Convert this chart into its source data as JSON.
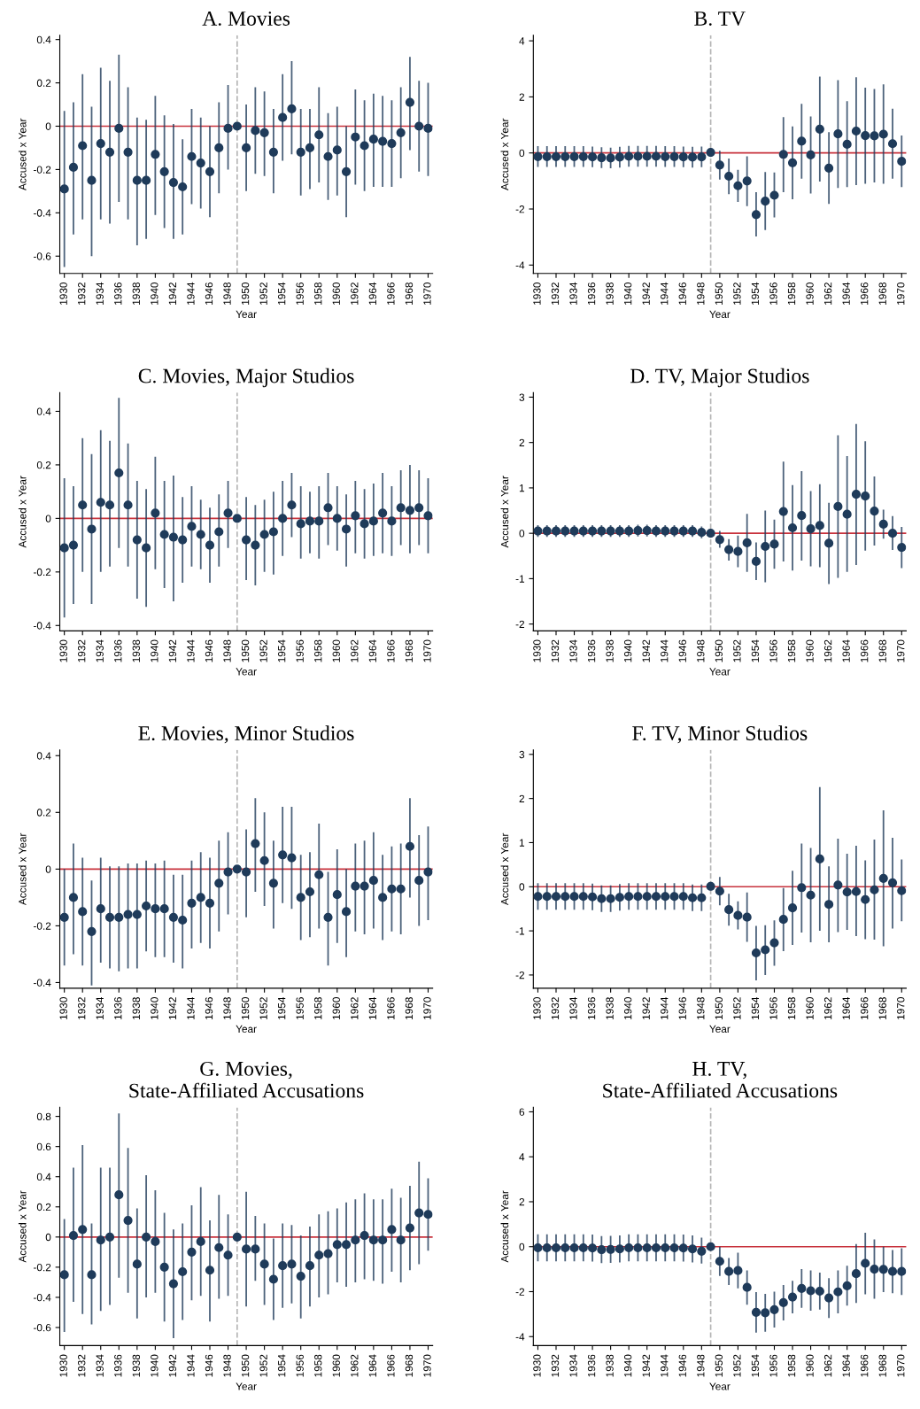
{
  "chart_data": [
    {
      "type": "scatter",
      "title": "A. Movies",
      "xlabel": "Year",
      "ylabel": "Accused x Year",
      "marker": "circle",
      "grid": false,
      "x": [
        1930,
        1931,
        1932,
        1933,
        1934,
        1935,
        1936,
        1937,
        1938,
        1939,
        1940,
        1941,
        1942,
        1943,
        1944,
        1945,
        1946,
        1947,
        1948,
        1949,
        1950,
        1951,
        1952,
        1953,
        1954,
        1955,
        1956,
        1957,
        1958,
        1959,
        1960,
        1961,
        1962,
        1963,
        1964,
        1965,
        1966,
        1967,
        1968,
        1969,
        1970
      ],
      "xlim": [
        1929.5,
        1970.5
      ],
      "xticks": [
        1930,
        1932,
        1934,
        1936,
        1938,
        1940,
        1942,
        1944,
        1946,
        1948,
        1950,
        1952,
        1954,
        1956,
        1958,
        1960,
        1962,
        1964,
        1966,
        1968,
        1970
      ],
      "ylim": [
        -0.68,
        0.42
      ],
      "yticks": [
        -0.6,
        -0.4,
        -0.2,
        0,
        0.2,
        0.4
      ],
      "ref_lines": [
        {
          "axis": "y",
          "value": 0,
          "color": "#c8323c",
          "line_style": "solid"
        },
        {
          "axis": "x",
          "value": 1949,
          "color": "#b4b4b4",
          "line_style": "dashed"
        }
      ],
      "series": [
        {
          "color": "#1f3b5a",
          "values": [
            -0.29,
            -0.19,
            -0.09,
            -0.25,
            -0.08,
            -0.12,
            -0.01,
            -0.12,
            -0.25,
            -0.25,
            -0.13,
            -0.21,
            -0.26,
            -0.28,
            -0.14,
            -0.17,
            -0.21,
            -0.1,
            -0.01,
            0,
            -0.1,
            -0.02,
            -0.03,
            -0.12,
            0.04,
            0.08,
            -0.12,
            -0.1,
            -0.04,
            -0.14,
            -0.11,
            -0.21,
            -0.05,
            -0.09,
            -0.06,
            -0.07,
            -0.08,
            -0.03,
            0.11,
            0.0,
            -0.01
          ],
          "errors": [
            [
              -0.65,
              0.07
            ],
            [
              -0.5,
              0.11
            ],
            [
              -0.43,
              0.24
            ],
            [
              -0.6,
              0.09
            ],
            [
              -0.43,
              0.27
            ],
            [
              -0.45,
              0.21
            ],
            [
              -0.35,
              0.33
            ],
            [
              -0.43,
              0.18
            ],
            [
              -0.55,
              0.04
            ],
            [
              -0.52,
              0.03
            ],
            [
              -0.41,
              0.14
            ],
            [
              -0.47,
              0.05
            ],
            [
              -0.52,
              0.01
            ],
            [
              -0.5,
              -0.06
            ],
            [
              -0.36,
              0.08
            ],
            [
              -0.38,
              0.04
            ],
            [
              -0.42,
              0.0
            ],
            [
              -0.31,
              0.11
            ],
            [
              -0.2,
              0.19
            ],
            null,
            [
              -0.3,
              0.1
            ],
            [
              -0.22,
              0.18
            ],
            [
              -0.23,
              0.16
            ],
            [
              -0.31,
              0.08
            ],
            [
              -0.16,
              0.24
            ],
            [
              -0.13,
              0.3
            ],
            [
              -0.32,
              0.08
            ],
            [
              -0.29,
              0.08
            ],
            [
              -0.26,
              0.18
            ],
            [
              -0.34,
              0.06
            ],
            [
              -0.32,
              0.09
            ],
            [
              -0.42,
              0.0
            ],
            [
              -0.27,
              0.17
            ],
            [
              -0.3,
              0.12
            ],
            [
              -0.28,
              0.15
            ],
            [
              -0.28,
              0.14
            ],
            [
              -0.28,
              0.12
            ],
            [
              -0.24,
              0.18
            ],
            [
              -0.11,
              0.32
            ],
            [
              -0.21,
              0.21
            ],
            [
              -0.23,
              0.2
            ]
          ]
        }
      ]
    },
    {
      "type": "scatter",
      "title": "B. TV",
      "xlabel": "Year",
      "ylabel": "Accused x Year",
      "marker": "circle",
      "grid": false,
      "x": [
        1930,
        1931,
        1932,
        1933,
        1934,
        1935,
        1936,
        1937,
        1938,
        1939,
        1940,
        1941,
        1942,
        1943,
        1944,
        1945,
        1946,
        1947,
        1948,
        1949,
        1950,
        1951,
        1952,
        1953,
        1954,
        1955,
        1956,
        1957,
        1958,
        1959,
        1960,
        1961,
        1962,
        1963,
        1964,
        1965,
        1966,
        1967,
        1968,
        1969,
        1970
      ],
      "xlim": [
        1929.5,
        1970.5
      ],
      "xticks": [
        1930,
        1932,
        1934,
        1936,
        1938,
        1940,
        1942,
        1944,
        1946,
        1948,
        1950,
        1952,
        1954,
        1956,
        1958,
        1960,
        1962,
        1964,
        1966,
        1968,
        1970
      ],
      "ylim": [
        -4.3,
        4.2
      ],
      "yticks": [
        -4,
        -2,
        0,
        2,
        4
      ],
      "ref_lines": [
        {
          "axis": "y",
          "value": 0,
          "color": "#c8323c",
          "line_style": "solid"
        },
        {
          "axis": "x",
          "value": 1949,
          "color": "#b4b4b4",
          "line_style": "dashed"
        }
      ],
      "series": [
        {
          "color": "#1f3b5a",
          "values": [
            -0.13,
            -0.13,
            -0.13,
            -0.13,
            -0.13,
            -0.13,
            -0.14,
            -0.17,
            -0.18,
            -0.15,
            -0.12,
            -0.12,
            -0.12,
            -0.12,
            -0.13,
            -0.13,
            -0.14,
            -0.15,
            -0.14,
            0.02,
            -0.43,
            -0.83,
            -1.17,
            -1.0,
            -2.2,
            -1.72,
            -1.51,
            -0.05,
            -0.35,
            0.42,
            -0.07,
            0.85,
            -0.54,
            0.68,
            0.31,
            0.78,
            0.62,
            0.61,
            0.67,
            0.33,
            -0.3
          ],
          "errors": [
            0.37,
            0.37,
            0.37,
            0.37,
            0.37,
            0.37,
            0.37,
            0.37,
            0.37,
            0.37,
            0.37,
            0.37,
            0.37,
            0.37,
            0.37,
            0.37,
            0.37,
            0.37,
            0.37,
            null,
            [
              -0.95,
              0.08
            ],
            [
              -1.47,
              -0.2
            ],
            [
              -1.75,
              -0.6
            ],
            [
              -1.9,
              -0.12
            ],
            [
              -2.98,
              -1.4
            ],
            [
              -2.75,
              -0.68
            ],
            [
              -2.3,
              -0.7
            ],
            [
              -1.4,
              1.28
            ],
            [
              -1.65,
              0.95
            ],
            [
              -0.92,
              1.75
            ],
            [
              -1.45,
              1.3
            ],
            [
              -1.02,
              2.72
            ],
            [
              -1.82,
              0.74
            ],
            [
              -1.25,
              2.6
            ],
            [
              -1.22,
              1.85
            ],
            [
              -1.15,
              2.7
            ],
            [
              -1.1,
              2.33
            ],
            [
              -1.05,
              2.28
            ],
            [
              -1.1,
              2.45
            ],
            [
              -0.92,
              1.58
            ],
            [
              -1.22,
              0.62
            ]
          ]
        }
      ]
    },
    {
      "type": "scatter",
      "title": "C. Movies, Major Studios",
      "xlabel": "Year",
      "ylabel": "Accused x Year",
      "marker": "circle",
      "grid": false,
      "x": [
        1930,
        1931,
        1932,
        1933,
        1934,
        1935,
        1936,
        1937,
        1938,
        1939,
        1940,
        1941,
        1942,
        1943,
        1944,
        1945,
        1946,
        1947,
        1948,
        1949,
        1950,
        1951,
        1952,
        1953,
        1954,
        1955,
        1956,
        1957,
        1958,
        1959,
        1960,
        1961,
        1962,
        1963,
        1964,
        1965,
        1966,
        1967,
        1968,
        1969,
        1970
      ],
      "xlim": [
        1929.5,
        1970.5
      ],
      "xticks": [
        1930,
        1932,
        1934,
        1936,
        1938,
        1940,
        1942,
        1944,
        1946,
        1948,
        1950,
        1952,
        1954,
        1956,
        1958,
        1960,
        1962,
        1964,
        1966,
        1968,
        1970
      ],
      "ylim": [
        -0.42,
        0.47
      ],
      "yticks": [
        -0.4,
        -0.2,
        0,
        0.2,
        0.4
      ],
      "ref_lines": [
        {
          "axis": "y",
          "value": 0,
          "color": "#c8323c",
          "line_style": "solid"
        },
        {
          "axis": "x",
          "value": 1949,
          "color": "#b4b4b4",
          "line_style": "dashed"
        }
      ],
      "series": [
        {
          "color": "#1f3b5a",
          "values": [
            -0.11,
            -0.1,
            0.05,
            -0.04,
            0.06,
            0.05,
            0.17,
            0.05,
            -0.08,
            -0.11,
            0.02,
            -0.06,
            -0.07,
            -0.08,
            -0.03,
            -0.06,
            -0.1,
            -0.05,
            0.02,
            0,
            -0.08,
            -0.1,
            -0.06,
            -0.05,
            0.0,
            0.05,
            -0.02,
            -0.01,
            -0.01,
            0.04,
            0.0,
            -0.04,
            0.01,
            -0.02,
            -0.01,
            0.02,
            -0.01,
            0.04,
            0.03,
            0.04,
            0.01
          ],
          "errors": [
            [
              -0.37,
              0.15
            ],
            [
              -0.32,
              0.12
            ],
            [
              -0.2,
              0.3
            ],
            [
              -0.32,
              0.24
            ],
            [
              -0.2,
              0.33
            ],
            [
              -0.18,
              0.29
            ],
            [
              -0.11,
              0.45
            ],
            [
              -0.18,
              0.28
            ],
            [
              -0.3,
              0.14
            ],
            [
              -0.33,
              0.11
            ],
            [
              -0.19,
              0.23
            ],
            [
              -0.26,
              0.14
            ],
            [
              -0.31,
              0.16
            ],
            [
              -0.24,
              0.08
            ],
            [
              -0.18,
              0.12
            ],
            [
              -0.19,
              0.07
            ],
            [
              -0.24,
              0.04
            ],
            [
              -0.18,
              0.09
            ],
            [
              -0.11,
              0.14
            ],
            null,
            [
              -0.23,
              0.08
            ],
            [
              -0.25,
              0.05
            ],
            [
              -0.2,
              0.07
            ],
            [
              -0.21,
              0.1
            ],
            [
              -0.14,
              0.14
            ],
            [
              -0.07,
              0.17
            ],
            [
              -0.15,
              0.12
            ],
            [
              -0.13,
              0.1
            ],
            [
              -0.15,
              0.12
            ],
            [
              -0.1,
              0.17
            ],
            [
              -0.12,
              0.12
            ],
            [
              -0.18,
              0.09
            ],
            [
              -0.13,
              0.14
            ],
            [
              -0.15,
              0.11
            ],
            [
              -0.14,
              0.13
            ],
            [
              -0.13,
              0.17
            ],
            [
              -0.14,
              0.12
            ],
            [
              -0.1,
              0.18
            ],
            [
              -0.13,
              0.2
            ],
            [
              -0.1,
              0.18
            ],
            [
              -0.13,
              0.15
            ]
          ]
        }
      ]
    },
    {
      "type": "scatter",
      "title": "D. TV, Major Studios",
      "xlabel": "Year",
      "ylabel": "Accused x Year",
      "marker": "circle",
      "grid": false,
      "x": [
        1930,
        1931,
        1932,
        1933,
        1934,
        1935,
        1936,
        1937,
        1938,
        1939,
        1940,
        1941,
        1942,
        1943,
        1944,
        1945,
        1946,
        1947,
        1948,
        1949,
        1950,
        1951,
        1952,
        1953,
        1954,
        1955,
        1956,
        1957,
        1958,
        1959,
        1960,
        1961,
        1962,
        1963,
        1964,
        1965,
        1966,
        1967,
        1968,
        1969,
        1970
      ],
      "xlim": [
        1929.5,
        1970.5
      ],
      "xticks": [
        1930,
        1932,
        1934,
        1936,
        1938,
        1940,
        1942,
        1944,
        1946,
        1948,
        1950,
        1952,
        1954,
        1956,
        1958,
        1960,
        1962,
        1964,
        1966,
        1968,
        1970
      ],
      "ylim": [
        -2.15,
        3.1
      ],
      "yticks": [
        -2,
        -1,
        0,
        1,
        2,
        3
      ],
      "ref_lines": [
        {
          "axis": "y",
          "value": 0,
          "color": "#c8323c",
          "line_style": "solid"
        },
        {
          "axis": "x",
          "value": 1949,
          "color": "#b4b4b4",
          "line_style": "dashed"
        }
      ],
      "series": [
        {
          "color": "#1f3b5a",
          "values": [
            0.05,
            0.05,
            0.05,
            0.05,
            0.05,
            0.05,
            0.05,
            0.05,
            0.05,
            0.05,
            0.05,
            0.06,
            0.06,
            0.05,
            0.05,
            0.05,
            0.05,
            0.05,
            0.02,
            0.0,
            -0.14,
            -0.36,
            -0.4,
            -0.21,
            -0.62,
            -0.29,
            -0.24,
            0.48,
            0.12,
            0.39,
            0.1,
            0.17,
            -0.22,
            0.59,
            0.42,
            0.86,
            0.82,
            0.49,
            0.2,
            0.0,
            -0.31
          ],
          "errors": [
            0.13,
            0.13,
            0.13,
            0.13,
            0.13,
            0.13,
            0.13,
            0.13,
            0.13,
            0.13,
            0.13,
            0.13,
            0.13,
            0.13,
            0.13,
            0.13,
            0.13,
            0.13,
            0.13,
            null,
            [
              -0.32,
              0.05
            ],
            [
              -0.6,
              -0.13
            ],
            [
              -0.75,
              -0.05
            ],
            [
              -0.85,
              0.43
            ],
            [
              -1.03,
              -0.2
            ],
            [
              -1.08,
              0.5
            ],
            [
              -0.78,
              0.3
            ],
            [
              -0.62,
              1.58
            ],
            [
              -0.82,
              1.06
            ],
            [
              -0.6,
              1.37
            ],
            [
              -0.73,
              0.93
            ],
            [
              -0.75,
              1.08
            ],
            [
              -1.12,
              0.67
            ],
            [
              -0.98,
              2.16
            ],
            [
              -0.85,
              1.7
            ],
            [
              -0.7,
              2.41
            ],
            [
              -0.38,
              2.03
            ],
            [
              -0.27,
              1.25
            ],
            [
              -0.12,
              0.52
            ],
            [
              -0.37,
              0.38
            ],
            [
              -0.77,
              0.14
            ]
          ]
        }
      ]
    },
    {
      "type": "scatter",
      "title": "E. Movies, Minor Studios",
      "xlabel": "Year",
      "ylabel": "Accused x Year",
      "marker": "circle",
      "grid": false,
      "x": [
        1930,
        1931,
        1932,
        1933,
        1934,
        1935,
        1936,
        1937,
        1938,
        1939,
        1940,
        1941,
        1942,
        1943,
        1944,
        1945,
        1946,
        1947,
        1948,
        1949,
        1950,
        1951,
        1952,
        1953,
        1954,
        1955,
        1956,
        1957,
        1958,
        1959,
        1960,
        1961,
        1962,
        1963,
        1964,
        1965,
        1966,
        1967,
        1968,
        1969,
        1970
      ],
      "xlim": [
        1929.5,
        1970.5
      ],
      "xticks": [
        1930,
        1932,
        1934,
        1936,
        1938,
        1940,
        1942,
        1944,
        1946,
        1948,
        1950,
        1952,
        1954,
        1956,
        1958,
        1960,
        1962,
        1964,
        1966,
        1968,
        1970
      ],
      "ylim": [
        -0.42,
        0.42
      ],
      "yticks": [
        -0.4,
        -0.2,
        0,
        0.2,
        0.4
      ],
      "ref_lines": [
        {
          "axis": "y",
          "value": 0,
          "color": "#c8323c",
          "line_style": "solid"
        },
        {
          "axis": "x",
          "value": 1949,
          "color": "#b4b4b4",
          "line_style": "dashed"
        }
      ],
      "series": [
        {
          "color": "#1f3b5a",
          "values": [
            -0.17,
            -0.1,
            -0.15,
            -0.22,
            -0.14,
            -0.17,
            -0.17,
            -0.16,
            -0.16,
            -0.13,
            -0.14,
            -0.14,
            -0.17,
            -0.18,
            -0.12,
            -0.1,
            -0.12,
            -0.05,
            -0.01,
            0,
            -0.01,
            0.09,
            0.03,
            -0.05,
            0.05,
            0.04,
            -0.1,
            -0.08,
            -0.02,
            -0.17,
            -0.09,
            -0.15,
            -0.06,
            -0.06,
            -0.04,
            -0.1,
            -0.07,
            -0.07,
            0.08,
            -0.04,
            -0.01
          ],
          "errors": [
            [
              -0.34,
              0.0
            ],
            [
              -0.3,
              0.09
            ],
            [
              -0.34,
              0.04
            ],
            [
              -0.41,
              -0.04
            ],
            [
              -0.33,
              0.04
            ],
            [
              -0.35,
              0.01
            ],
            [
              -0.36,
              0.01
            ],
            [
              -0.35,
              0.02
            ],
            [
              -0.35,
              0.02
            ],
            [
              -0.29,
              0.03
            ],
            [
              -0.31,
              0.02
            ],
            [
              -0.31,
              0.03
            ],
            [
              -0.33,
              -0.02
            ],
            [
              -0.35,
              -0.02
            ],
            [
              -0.28,
              0.03
            ],
            [
              -0.26,
              0.06
            ],
            [
              -0.28,
              0.04
            ],
            [
              -0.22,
              0.1
            ],
            [
              -0.16,
              0.13
            ],
            null,
            [
              -0.17,
              0.14
            ],
            [
              -0.08,
              0.25
            ],
            [
              -0.13,
              0.2
            ],
            [
              -0.21,
              0.1
            ],
            [
              -0.12,
              0.22
            ],
            [
              -0.14,
              0.22
            ],
            [
              -0.25,
              0.05
            ],
            [
              -0.24,
              0.06
            ],
            [
              -0.21,
              0.16
            ],
            [
              -0.34,
              -0.01
            ],
            [
              -0.26,
              0.07
            ],
            [
              -0.31,
              0.0
            ],
            [
              -0.22,
              0.09
            ],
            [
              -0.23,
              0.1
            ],
            [
              -0.21,
              0.13
            ],
            [
              -0.25,
              0.05
            ],
            [
              -0.22,
              0.08
            ],
            [
              -0.23,
              0.09
            ],
            [
              -0.1,
              0.25
            ],
            [
              -0.2,
              0.12
            ],
            [
              -0.18,
              0.15
            ]
          ]
        }
      ]
    },
    {
      "type": "scatter",
      "title": "F. TV, Minor Studios",
      "xlabel": "Year",
      "ylabel": "Accused x Year",
      "marker": "circle",
      "grid": false,
      "x": [
        1930,
        1931,
        1932,
        1933,
        1934,
        1935,
        1936,
        1937,
        1938,
        1939,
        1940,
        1941,
        1942,
        1943,
        1944,
        1945,
        1946,
        1947,
        1948,
        1949,
        1950,
        1951,
        1952,
        1953,
        1954,
        1955,
        1956,
        1957,
        1958,
        1959,
        1960,
        1961,
        1962,
        1963,
        1964,
        1965,
        1966,
        1967,
        1968,
        1969,
        1970
      ],
      "xlim": [
        1929.5,
        1970.5
      ],
      "xticks": [
        1930,
        1932,
        1934,
        1936,
        1938,
        1940,
        1942,
        1944,
        1946,
        1948,
        1950,
        1952,
        1954,
        1956,
        1958,
        1960,
        1962,
        1964,
        1966,
        1968,
        1970
      ],
      "ylim": [
        -2.3,
        3.1
      ],
      "yticks": [
        -2,
        -1,
        0,
        1,
        2,
        3
      ],
      "ref_lines": [
        {
          "axis": "y",
          "value": 0,
          "color": "#c8323c",
          "line_style": "solid"
        },
        {
          "axis": "x",
          "value": 1949,
          "color": "#b4b4b4",
          "line_style": "dashed"
        }
      ],
      "series": [
        {
          "color": "#1f3b5a",
          "values": [
            -0.22,
            -0.22,
            -0.22,
            -0.22,
            -0.22,
            -0.22,
            -0.23,
            -0.27,
            -0.27,
            -0.24,
            -0.22,
            -0.22,
            -0.22,
            -0.22,
            -0.22,
            -0.22,
            -0.22,
            -0.25,
            -0.25,
            0.01,
            -0.1,
            -0.52,
            -0.65,
            -0.69,
            -1.5,
            -1.43,
            -1.27,
            -0.74,
            -0.48,
            -0.02,
            -0.19,
            0.63,
            -0.4,
            0.04,
            -0.12,
            -0.11,
            -0.29,
            -0.07,
            0.19,
            0.09,
            -0.09
          ],
          "errors": [
            0.3,
            0.3,
            0.3,
            0.3,
            0.3,
            0.3,
            0.3,
            0.3,
            0.3,
            0.3,
            0.3,
            0.3,
            0.3,
            0.3,
            0.3,
            0.3,
            0.3,
            0.3,
            0.3,
            null,
            [
              -0.42,
              0.22
            ],
            [
              -0.88,
              -0.16
            ],
            [
              -0.97,
              -0.33
            ],
            [
              -1.25,
              -0.13
            ],
            [
              -2.12,
              -0.89
            ],
            [
              -2.0,
              -0.87
            ],
            [
              -1.79,
              -0.76
            ],
            [
              -1.46,
              -0.03
            ],
            [
              -1.32,
              0.36
            ],
            [
              -1.04,
              0.98
            ],
            [
              -1.26,
              0.88
            ],
            [
              -1.0,
              2.26
            ],
            [
              -1.26,
              0.46
            ],
            [
              -1.03,
              1.09
            ],
            [
              -0.98,
              0.75
            ],
            [
              -1.12,
              0.93
            ],
            [
              -1.19,
              0.6
            ],
            [
              -1.2,
              1.07
            ],
            [
              -1.35,
              1.73
            ],
            [
              -0.95,
              1.11
            ],
            [
              -0.78,
              0.62
            ]
          ]
        }
      ]
    },
    {
      "type": "scatter",
      "title": "G. Movies,\nState-Affiliated Accusations",
      "xlabel": "Year",
      "ylabel": "Accused x Year",
      "marker": "circle",
      "grid": false,
      "x": [
        1930,
        1931,
        1932,
        1933,
        1934,
        1935,
        1936,
        1937,
        1938,
        1939,
        1940,
        1941,
        1942,
        1943,
        1944,
        1945,
        1946,
        1947,
        1948,
        1949,
        1950,
        1951,
        1952,
        1953,
        1954,
        1955,
        1956,
        1957,
        1958,
        1959,
        1960,
        1961,
        1962,
        1963,
        1964,
        1965,
        1966,
        1967,
        1968,
        1969,
        1970
      ],
      "xlim": [
        1929.5,
        1970.5
      ],
      "xticks": [
        1930,
        1932,
        1934,
        1936,
        1938,
        1940,
        1942,
        1944,
        1946,
        1948,
        1950,
        1952,
        1954,
        1956,
        1958,
        1960,
        1962,
        1964,
        1966,
        1968,
        1970
      ],
      "ylim": [
        -0.72,
        0.86
      ],
      "yticks": [
        -0.6,
        -0.4,
        -0.2,
        0,
        0.2,
        0.4,
        0.6,
        0.8
      ],
      "ref_lines": [
        {
          "axis": "y",
          "value": 0,
          "color": "#c8323c",
          "line_style": "solid"
        },
        {
          "axis": "x",
          "value": 1949,
          "color": "#b4b4b4",
          "line_style": "dashed"
        }
      ],
      "series": [
        {
          "color": "#1f3b5a",
          "values": [
            -0.25,
            0.01,
            0.05,
            -0.25,
            -0.02,
            0.0,
            0.28,
            0.11,
            -0.18,
            0.0,
            -0.03,
            -0.2,
            -0.31,
            -0.23,
            -0.1,
            -0.03,
            -0.22,
            -0.07,
            -0.12,
            0,
            -0.08,
            -0.08,
            -0.18,
            -0.28,
            -0.19,
            -0.18,
            -0.26,
            -0.19,
            -0.12,
            -0.11,
            -0.05,
            -0.05,
            -0.02,
            0.01,
            -0.02,
            -0.02,
            0.05,
            -0.02,
            0.06,
            0.16,
            0.15
          ],
          "errors": [
            [
              -0.63,
              0.12
            ],
            [
              -0.43,
              0.46
            ],
            [
              -0.51,
              0.61
            ],
            [
              -0.58,
              0.09
            ],
            [
              -0.49,
              0.46
            ],
            [
              -0.45,
              0.46
            ],
            [
              -0.27,
              0.82
            ],
            [
              -0.37,
              0.59
            ],
            [
              -0.54,
              0.19
            ],
            [
              -0.4,
              0.41
            ],
            [
              -0.37,
              0.31
            ],
            [
              -0.56,
              0.16
            ],
            [
              -0.67,
              0.05
            ],
            [
              -0.55,
              0.09
            ],
            [
              -0.42,
              0.21
            ],
            [
              -0.39,
              0.33
            ],
            [
              -0.56,
              0.11
            ],
            [
              -0.41,
              0.28
            ],
            [
              -0.39,
              0.15
            ],
            null,
            [
              -0.46,
              0.3
            ],
            [
              -0.29,
              0.14
            ],
            [
              -0.45,
              0.09
            ],
            [
              -0.55,
              -0.01
            ],
            [
              -0.47,
              0.09
            ],
            [
              -0.44,
              0.08
            ],
            [
              -0.54,
              0.01
            ],
            [
              -0.46,
              0.07
            ],
            [
              -0.4,
              0.15
            ],
            [
              -0.38,
              0.17
            ],
            [
              -0.3,
              0.19
            ],
            [
              -0.33,
              0.23
            ],
            [
              -0.3,
              0.25
            ],
            [
              -0.28,
              0.29
            ],
            [
              -0.29,
              0.25
            ],
            [
              -0.31,
              0.25
            ],
            [
              -0.23,
              0.32
            ],
            [
              -0.3,
              0.26
            ],
            [
              -0.22,
              0.34
            ],
            [
              -0.18,
              0.5
            ],
            [
              -0.09,
              0.39
            ]
          ]
        }
      ]
    },
    {
      "type": "scatter",
      "title": "H. TV,\nState-Affiliated Accusations",
      "xlabel": "Year",
      "ylabel": "Accused x Year",
      "marker": "circle",
      "grid": false,
      "x": [
        1930,
        1931,
        1932,
        1933,
        1934,
        1935,
        1936,
        1937,
        1938,
        1939,
        1940,
        1941,
        1942,
        1943,
        1944,
        1945,
        1946,
        1947,
        1948,
        1949,
        1950,
        1951,
        1952,
        1953,
        1954,
        1955,
        1956,
        1957,
        1958,
        1959,
        1960,
        1961,
        1962,
        1963,
        1964,
        1965,
        1966,
        1967,
        1968,
        1969,
        1970
      ],
      "xlim": [
        1929.5,
        1970.5
      ],
      "xticks": [
        1930,
        1932,
        1934,
        1936,
        1938,
        1940,
        1942,
        1944,
        1946,
        1948,
        1950,
        1952,
        1954,
        1956,
        1958,
        1960,
        1962,
        1964,
        1966,
        1968,
        1970
      ],
      "ylim": [
        -4.4,
        6.2
      ],
      "yticks": [
        -4,
        -2,
        0,
        2,
        4,
        6
      ],
      "ref_lines": [
        {
          "axis": "y",
          "value": 0,
          "color": "#c8323c",
          "line_style": "solid"
        },
        {
          "axis": "x",
          "value": 1949,
          "color": "#b4b4b4",
          "line_style": "dashed"
        }
      ],
      "series": [
        {
          "color": "#1f3b5a",
          "values": [
            -0.05,
            -0.05,
            -0.05,
            -0.05,
            -0.05,
            -0.05,
            -0.06,
            -0.13,
            -0.12,
            -0.1,
            -0.05,
            -0.05,
            -0.05,
            -0.05,
            -0.05,
            -0.05,
            -0.06,
            -0.1,
            -0.2,
            0.0,
            -0.65,
            -1.1,
            -1.06,
            -1.81,
            -2.92,
            -2.94,
            -2.8,
            -2.49,
            -2.24,
            -1.86,
            -1.96,
            -1.98,
            -2.28,
            -2.01,
            -1.74,
            -1.2,
            -0.74,
            -1.0,
            -1.01,
            -1.1,
            -1.1
          ],
          "errors": [
            0.6,
            0.6,
            0.6,
            0.6,
            0.6,
            0.6,
            0.6,
            0.6,
            0.6,
            0.6,
            0.6,
            0.6,
            0.6,
            0.6,
            0.6,
            0.6,
            0.6,
            0.6,
            [
              -0.75,
              0.4
            ],
            null,
            [
              -1.3,
              0.0
            ],
            [
              -1.7,
              -0.5
            ],
            [
              -1.85,
              -0.27
            ],
            [
              -2.58,
              -1.05
            ],
            [
              -3.82,
              -2.02
            ],
            [
              -3.78,
              -2.1
            ],
            [
              -3.6,
              -2.0
            ],
            [
              -3.28,
              -1.7
            ],
            [
              -2.97,
              -1.52
            ],
            [
              -2.72,
              -1.0
            ],
            [
              -2.85,
              -1.05
            ],
            [
              -2.8,
              -1.15
            ],
            [
              -3.17,
              -1.4
            ],
            [
              -2.97,
              -1.05
            ],
            [
              -2.62,
              -0.85
            ],
            [
              -2.5,
              0.12
            ],
            [
              -2.12,
              0.62
            ],
            [
              -2.32,
              0.32
            ],
            [
              -2.02,
              0.0
            ],
            [
              -2.07,
              -0.15
            ],
            [
              -2.15,
              -0.07
            ]
          ]
        }
      ]
    }
  ]
}
